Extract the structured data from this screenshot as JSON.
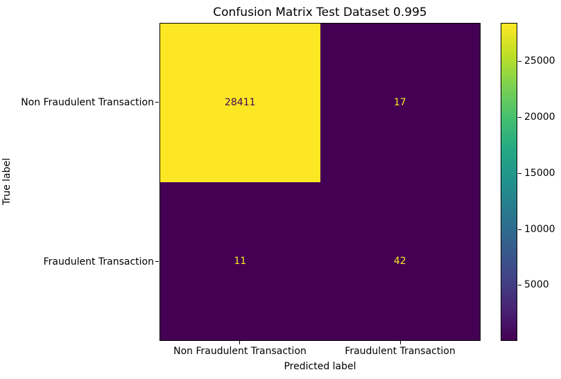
{
  "chart_data": {
    "type": "heatmap",
    "title": "Confusion Matrix Test Dataset 0.995",
    "xlabel": "Predicted label",
    "ylabel": "True label",
    "categories": [
      "Non Fraudulent Transaction",
      "Fraudulent Transaction"
    ],
    "matrix": [
      [
        28411,
        17
      ],
      [
        11,
        42
      ]
    ],
    "vmin": 11,
    "vmax": 28411,
    "colormap": "viridis",
    "colorbar_ticks": [
      5000,
      10000,
      15000,
      20000,
      25000
    ],
    "colors": {
      "cmap_min": "#440154",
      "cmap_max": "#fde725",
      "axis": "#000000",
      "background": "#ffffff"
    },
    "legend_position": "right-colorbar",
    "grid": false
  }
}
